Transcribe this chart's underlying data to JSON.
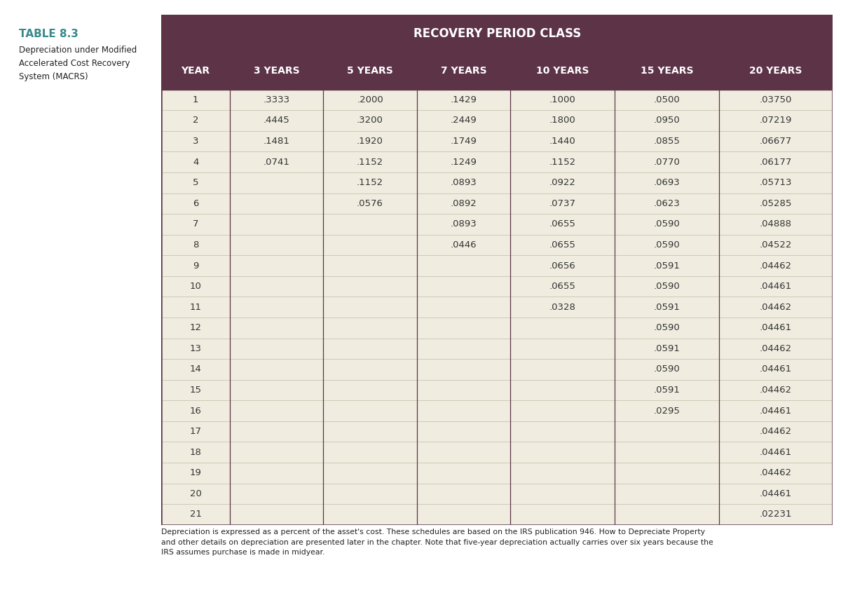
{
  "title_line1": "TABLE 8.3",
  "title_line2": "Depreciation under Modified\nAccelerated Cost Recovery\nSystem (MACRS)",
  "header_top": "RECOVERY PERIOD CLASS",
  "columns": [
    "YEAR",
    "3 YEARS",
    "5 YEARS",
    "7 YEARS",
    "10 YEARS",
    "15 YEARS",
    "20 YEARS"
  ],
  "rows": [
    [
      "1",
      ".3333",
      ".2000",
      ".1429",
      ".1000",
      ".0500",
      ".03750"
    ],
    [
      "2",
      ".4445",
      ".3200",
      ".2449",
      ".1800",
      ".0950",
      ".07219"
    ],
    [
      "3",
      ".1481",
      ".1920",
      ".1749",
      ".1440",
      ".0855",
      ".06677"
    ],
    [
      "4",
      ".0741",
      ".1152",
      ".1249",
      ".1152",
      ".0770",
      ".06177"
    ],
    [
      "5",
      "",
      ".1152",
      ".0893",
      ".0922",
      ".0693",
      ".05713"
    ],
    [
      "6",
      "",
      ".0576",
      ".0892",
      ".0737",
      ".0623",
      ".05285"
    ],
    [
      "7",
      "",
      "",
      ".0893",
      ".0655",
      ".0590",
      ".04888"
    ],
    [
      "8",
      "",
      "",
      ".0446",
      ".0655",
      ".0590",
      ".04522"
    ],
    [
      "9",
      "",
      "",
      "",
      ".0656",
      ".0591",
      ".04462"
    ],
    [
      "10",
      "",
      "",
      "",
      ".0655",
      ".0590",
      ".04461"
    ],
    [
      "11",
      "",
      "",
      "",
      ".0328",
      ".0591",
      ".04462"
    ],
    [
      "12",
      "",
      "",
      "",
      "",
      ".0590",
      ".04461"
    ],
    [
      "13",
      "",
      "",
      "",
      "",
      ".0591",
      ".04462"
    ],
    [
      "14",
      "",
      "",
      "",
      "",
      ".0590",
      ".04461"
    ],
    [
      "15",
      "",
      "",
      "",
      "",
      ".0591",
      ".04462"
    ],
    [
      "16",
      "",
      "",
      "",
      "",
      ".0295",
      ".04461"
    ],
    [
      "17",
      "",
      "",
      "",
      "",
      "",
      ".04462"
    ],
    [
      "18",
      "",
      "",
      "",
      "",
      "",
      ".04461"
    ],
    [
      "19",
      "",
      "",
      "",
      "",
      "",
      ".04462"
    ],
    [
      "20",
      "",
      "",
      "",
      "",
      "",
      ".04461"
    ],
    [
      "21",
      "",
      "",
      "",
      "",
      "",
      ".02231"
    ]
  ],
  "footnote": "Depreciation is expressed as a percent of the asset's cost. These schedules are based on the IRS publication 946. How to Depreciate Property\nand other details on depreciation are presented later in the chapter. Note that five-year depreciation actually carries over six years because the\nIRS assumes purchase is made in midyear.",
  "color_header_bg": "#5c3347",
  "color_header_text": "#ffffff",
  "color_table_bg": "#f0ede0",
  "color_border": "#5c3347",
  "color_left_bg": "#ffffff",
  "color_title": "#3a8a8a",
  "color_subtitle": "#222222",
  "color_data_text": "#333333",
  "color_outer_bg": "#ffffff",
  "color_grid": "#c8c4b0",
  "color_header_divider": "#7a5060"
}
